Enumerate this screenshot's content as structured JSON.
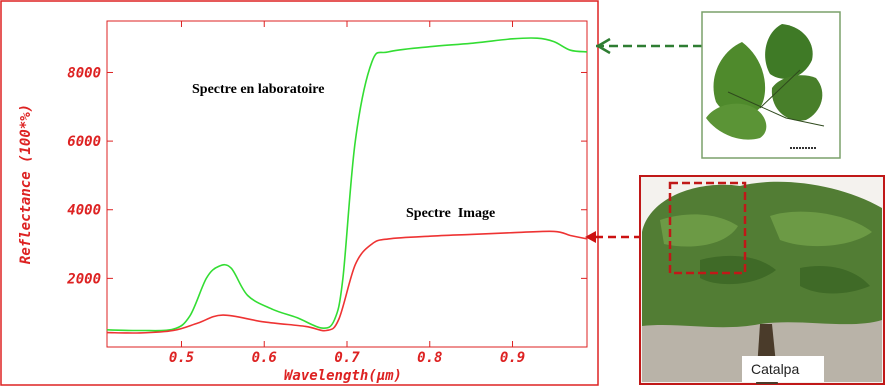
{
  "chart_data": {
    "type": "line",
    "xlabel": "Wavelength(μm)",
    "ylabel": "Reflectance (100*%)",
    "xlim": [
      0.41,
      0.99
    ],
    "ylim": [
      0,
      9500
    ],
    "xticks": [
      0.5,
      0.6,
      0.7,
      0.8,
      0.9
    ],
    "xtick_labels": [
      "0.5",
      "0.6",
      "0.7",
      "0.8",
      "0.9"
    ],
    "yticks": [
      2000,
      4000,
      6000,
      8000
    ],
    "ytick_labels": [
      "2000",
      "4000",
      "6000",
      "8000"
    ],
    "grid": false,
    "series": [
      {
        "name": "Spectre en laboratoire",
        "color": "#33dd33",
        "x": [
          0.41,
          0.45,
          0.49,
          0.51,
          0.53,
          0.545,
          0.56,
          0.58,
          0.61,
          0.64,
          0.67,
          0.685,
          0.695,
          0.71,
          0.73,
          0.75,
          0.8,
          0.85,
          0.9,
          0.93,
          0.95,
          0.97,
          0.99
        ],
        "y": [
          500,
          480,
          520,
          900,
          2000,
          2350,
          2300,
          1500,
          1100,
          850,
          550,
          800,
          2000,
          6000,
          8300,
          8600,
          8750,
          8850,
          8980,
          9000,
          8900,
          8650,
          8600
        ]
      },
      {
        "name": "Spectre Image",
        "color": "#ee3333",
        "x": [
          0.41,
          0.45,
          0.49,
          0.52,
          0.55,
          0.6,
          0.65,
          0.675,
          0.69,
          0.71,
          0.73,
          0.75,
          0.8,
          0.85,
          0.9,
          0.95,
          0.97,
          0.99
        ],
        "y": [
          420,
          410,
          480,
          700,
          930,
          730,
          600,
          480,
          800,
          2400,
          3000,
          3150,
          3230,
          3280,
          3330,
          3370,
          3250,
          3150
        ]
      }
    ],
    "annotations": {
      "lab": "Spectre en laboratoire",
      "image": "Spectre  Image",
      "photo_caption": "Catalpa"
    }
  },
  "colors": {
    "axis": "#dd2222",
    "lab_arrow": "#2e7d32",
    "image_arrow": "#cc1111",
    "leaf_frame": "#7aa06a"
  }
}
